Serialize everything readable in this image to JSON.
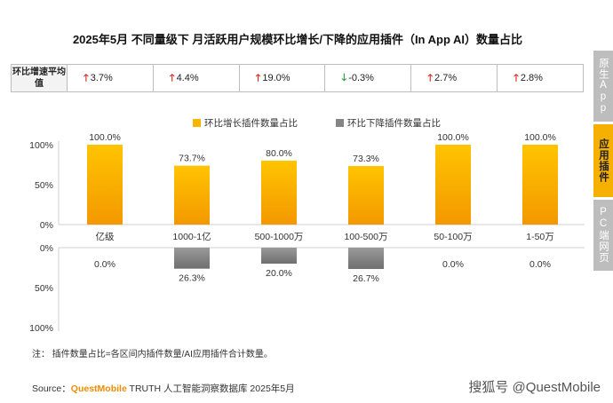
{
  "title": "2025年5月 不同量级下 月活跃用户规模环比增长/下降的应用插件（In App AI）数量占比",
  "growth_table": {
    "header": "环比增速平均值",
    "cells": [
      {
        "dir": "up",
        "arrow": "🡑",
        "value": "3.7%"
      },
      {
        "dir": "up",
        "arrow": "🡑",
        "value": "4.4%"
      },
      {
        "dir": "up",
        "arrow": "🡑",
        "value": "19.0%"
      },
      {
        "dir": "down",
        "arrow": "🡓",
        "value": "-0.3%"
      },
      {
        "dir": "up",
        "arrow": "🡑",
        "value": "2.7%"
      },
      {
        "dir": "up",
        "arrow": "🡑",
        "value": "2.8%"
      }
    ]
  },
  "legend": {
    "growth": "环比增长插件数量占比",
    "decline": "环比下降插件数量占比"
  },
  "colors": {
    "growth": "#f7b500",
    "decline": "#858585",
    "accent": "#f6b000"
  },
  "chart_data": {
    "type": "bar",
    "categories": [
      "亿级",
      "1000-1亿",
      "500-1000万",
      "100-500万",
      "50-100万",
      "1-50万"
    ],
    "series": [
      {
        "name": "环比增长插件数量占比",
        "values": [
          100.0,
          73.7,
          80.0,
          73.3,
          100.0,
          100.0
        ],
        "labels": [
          "100.0%",
          "73.7%",
          "80.0%",
          "73.3%",
          "100.0%",
          "100.0%"
        ]
      },
      {
        "name": "环比下降插件数量占比",
        "values": [
          0.0,
          26.3,
          20.0,
          26.7,
          0.0,
          0.0
        ],
        "labels": [
          "0.0%",
          "26.3%",
          "20.0%",
          "26.7%",
          "0.0%",
          "0.0%"
        ]
      }
    ],
    "upper_ticks": [
      "100%",
      "50%",
      "0%"
    ],
    "lower_ticks": [
      "0%",
      "50%",
      "100%"
    ],
    "ylim": [
      0,
      100
    ]
  },
  "side_tabs": [
    {
      "label": "原生App",
      "state": "inactive"
    },
    {
      "label": "应用插件",
      "state": "active"
    },
    {
      "label": "PC端网页",
      "state": "inactive"
    }
  ],
  "note": "注：  插件数量占比=各区间内插件数量/AI应用插件合计数量。",
  "source": {
    "prefix": "Source：",
    "brand": "QuestMobile",
    "rest": " TRUTH 人工智能洞察数据库 2025年5月"
  },
  "watermark": "搜狐号 @QuestMobile"
}
